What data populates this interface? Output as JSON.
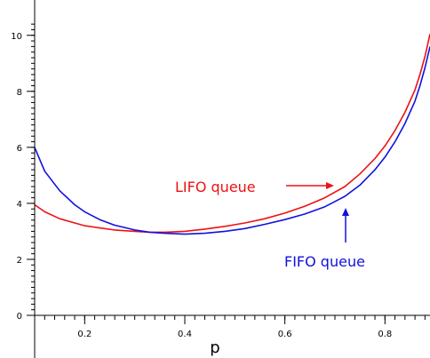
{
  "chart_data": {
    "type": "line",
    "xlabel": "p",
    "ylabel": "",
    "xlim": [
      0.1,
      0.89
    ],
    "ylim": [
      0,
      10.5
    ],
    "x_ticks": [
      0.2,
      0.4,
      0.6,
      0.8
    ],
    "y_ticks": [
      0,
      2,
      4,
      6,
      8,
      10
    ],
    "x_minor_step": 0.02,
    "y_minor_step": 0.2,
    "grid": false,
    "series": [
      {
        "name": "LIFO queue",
        "color": "#ee1111",
        "x": [
          0.1,
          0.12,
          0.15,
          0.18,
          0.2,
          0.23,
          0.26,
          0.3,
          0.33,
          0.36,
          0.4,
          0.44,
          0.48,
          0.52,
          0.56,
          0.6,
          0.64,
          0.68,
          0.72,
          0.75,
          0.78,
          0.8,
          0.82,
          0.84,
          0.86,
          0.87,
          0.88,
          0.89
        ],
        "y": [
          3.95,
          3.7,
          3.45,
          3.3,
          3.2,
          3.12,
          3.05,
          3.0,
          2.97,
          2.97,
          3.0,
          3.08,
          3.18,
          3.3,
          3.45,
          3.65,
          3.9,
          4.2,
          4.6,
          5.05,
          5.6,
          6.05,
          6.6,
          7.25,
          8.05,
          8.6,
          9.25,
          10.05
        ]
      },
      {
        "name": "FIFO queue",
        "color": "#1111dd",
        "x": [
          0.1,
          0.12,
          0.15,
          0.18,
          0.2,
          0.23,
          0.26,
          0.3,
          0.33,
          0.36,
          0.4,
          0.44,
          0.48,
          0.52,
          0.56,
          0.6,
          0.64,
          0.68,
          0.72,
          0.75,
          0.78,
          0.8,
          0.82,
          0.84,
          0.86,
          0.87,
          0.88,
          0.89
        ],
        "y": [
          6.0,
          5.15,
          4.45,
          3.95,
          3.7,
          3.42,
          3.22,
          3.05,
          2.97,
          2.93,
          2.9,
          2.93,
          3.0,
          3.1,
          3.25,
          3.42,
          3.62,
          3.88,
          4.25,
          4.65,
          5.2,
          5.65,
          6.2,
          6.85,
          7.65,
          8.2,
          8.85,
          9.6
        ]
      }
    ],
    "annotations": [
      {
        "text": "LIFO queue",
        "color": "#ee1111"
      },
      {
        "text": "FIFO queue",
        "color": "#1111dd"
      }
    ]
  }
}
